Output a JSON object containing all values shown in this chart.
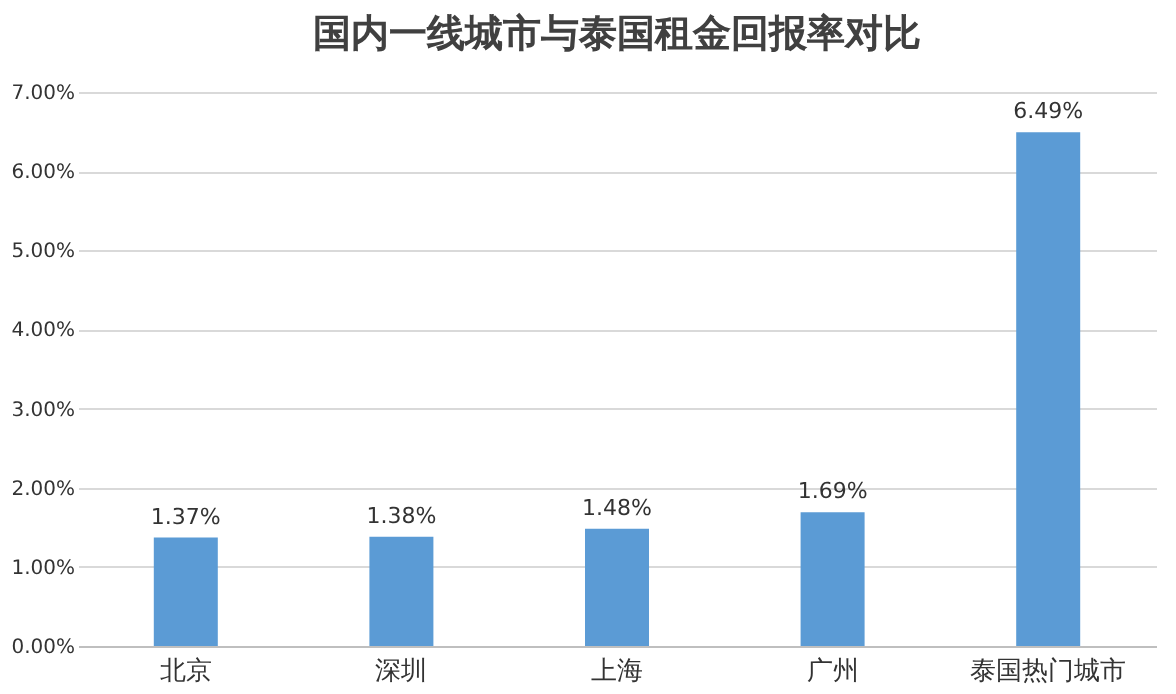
{
  "chart_data": {
    "type": "bar",
    "title": "国内一线城市与泰国租金回报率对比",
    "categories": [
      "北京",
      "深圳",
      "上海",
      "广州",
      "泰国热门城市"
    ],
    "values": [
      1.37,
      1.38,
      1.48,
      1.69,
      6.49
    ],
    "value_labels": [
      "1.37%",
      "1.38%",
      "1.48%",
      "1.69%",
      "6.49%"
    ],
    "color": "#5b9bd5",
    "ylim": [
      0,
      7
    ],
    "yticks": [
      {
        "value": 0,
        "label": "0.00%"
      },
      {
        "value": 1,
        "label": "1.00%"
      },
      {
        "value": 2,
        "label": "2.00%"
      },
      {
        "value": 3,
        "label": "3.00%"
      },
      {
        "value": 4,
        "label": "4.00%"
      },
      {
        "value": 5,
        "label": "5.00%"
      },
      {
        "value": 6,
        "label": "6.00%"
      },
      {
        "value": 7,
        "label": "7.00%"
      }
    ],
    "grid": "y"
  }
}
